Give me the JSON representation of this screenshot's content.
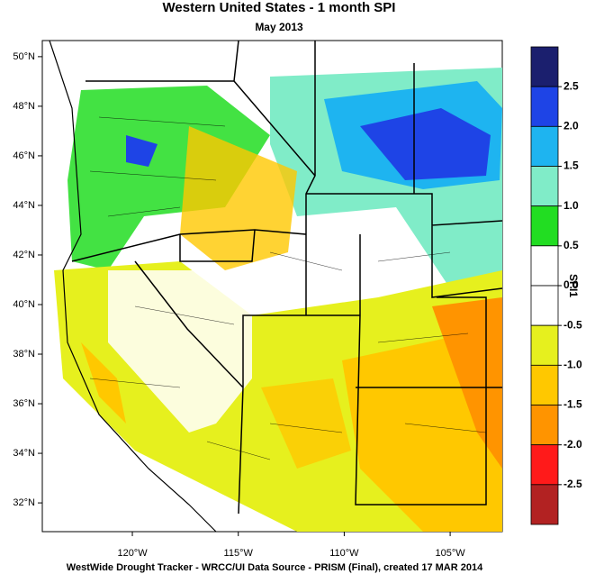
{
  "title": "Western United States - 1 month SPI",
  "subtitle": "May 2013",
  "map": {
    "xlim": [
      -124.25,
      -102.54
    ],
    "ylim": [
      30.84,
      50.65
    ],
    "yticks": [
      {
        "value": 50,
        "label": "50°N"
      },
      {
        "value": 48,
        "label": "48°N"
      },
      {
        "value": 46,
        "label": "46°N"
      },
      {
        "value": 44,
        "label": "44°N"
      },
      {
        "value": 42,
        "label": "42°N"
      },
      {
        "value": 40,
        "label": "40°N"
      },
      {
        "value": 38,
        "label": "38°N"
      },
      {
        "value": 36,
        "label": "36°N"
      },
      {
        "value": 34,
        "label": "34°N"
      },
      {
        "value": 32,
        "label": "32°N"
      }
    ],
    "xticks": [
      {
        "value": -120,
        "label": "120°W"
      },
      {
        "value": -115,
        "label": "115°W"
      },
      {
        "value": -110,
        "label": "110°W"
      },
      {
        "value": -105,
        "label": "105°W"
      }
    ]
  },
  "colorbar": {
    "label": "SPI1",
    "colors": [
      "#1b1f6e",
      "#1e44e6",
      "#1eb4f0",
      "#80ecc8",
      "#22dd22",
      "#ffffff",
      "#ffffff",
      "#e6f01e",
      "#ffc800",
      "#ff9400",
      "#ff1a1a",
      "#b22222"
    ],
    "ticks": [
      2.5,
      {
        "value": 2.0,
        "label": "2.0"
      },
      1.5,
      {
        "value": 1.0,
        "label": "1.0"
      },
      0.5,
      {
        "value": 0.0,
        "label": "0.0"
      },
      -0.5,
      {
        "value": -1.0,
        "label": "-1.0"
      },
      -1.5,
      {
        "value": -2.0,
        "label": "-2.0"
      },
      -2.5
    ]
  },
  "footer": "WestWide Drought Tracker - WRCC/UI  Data Source - PRISM (Final), created 17 MAR 2014"
}
